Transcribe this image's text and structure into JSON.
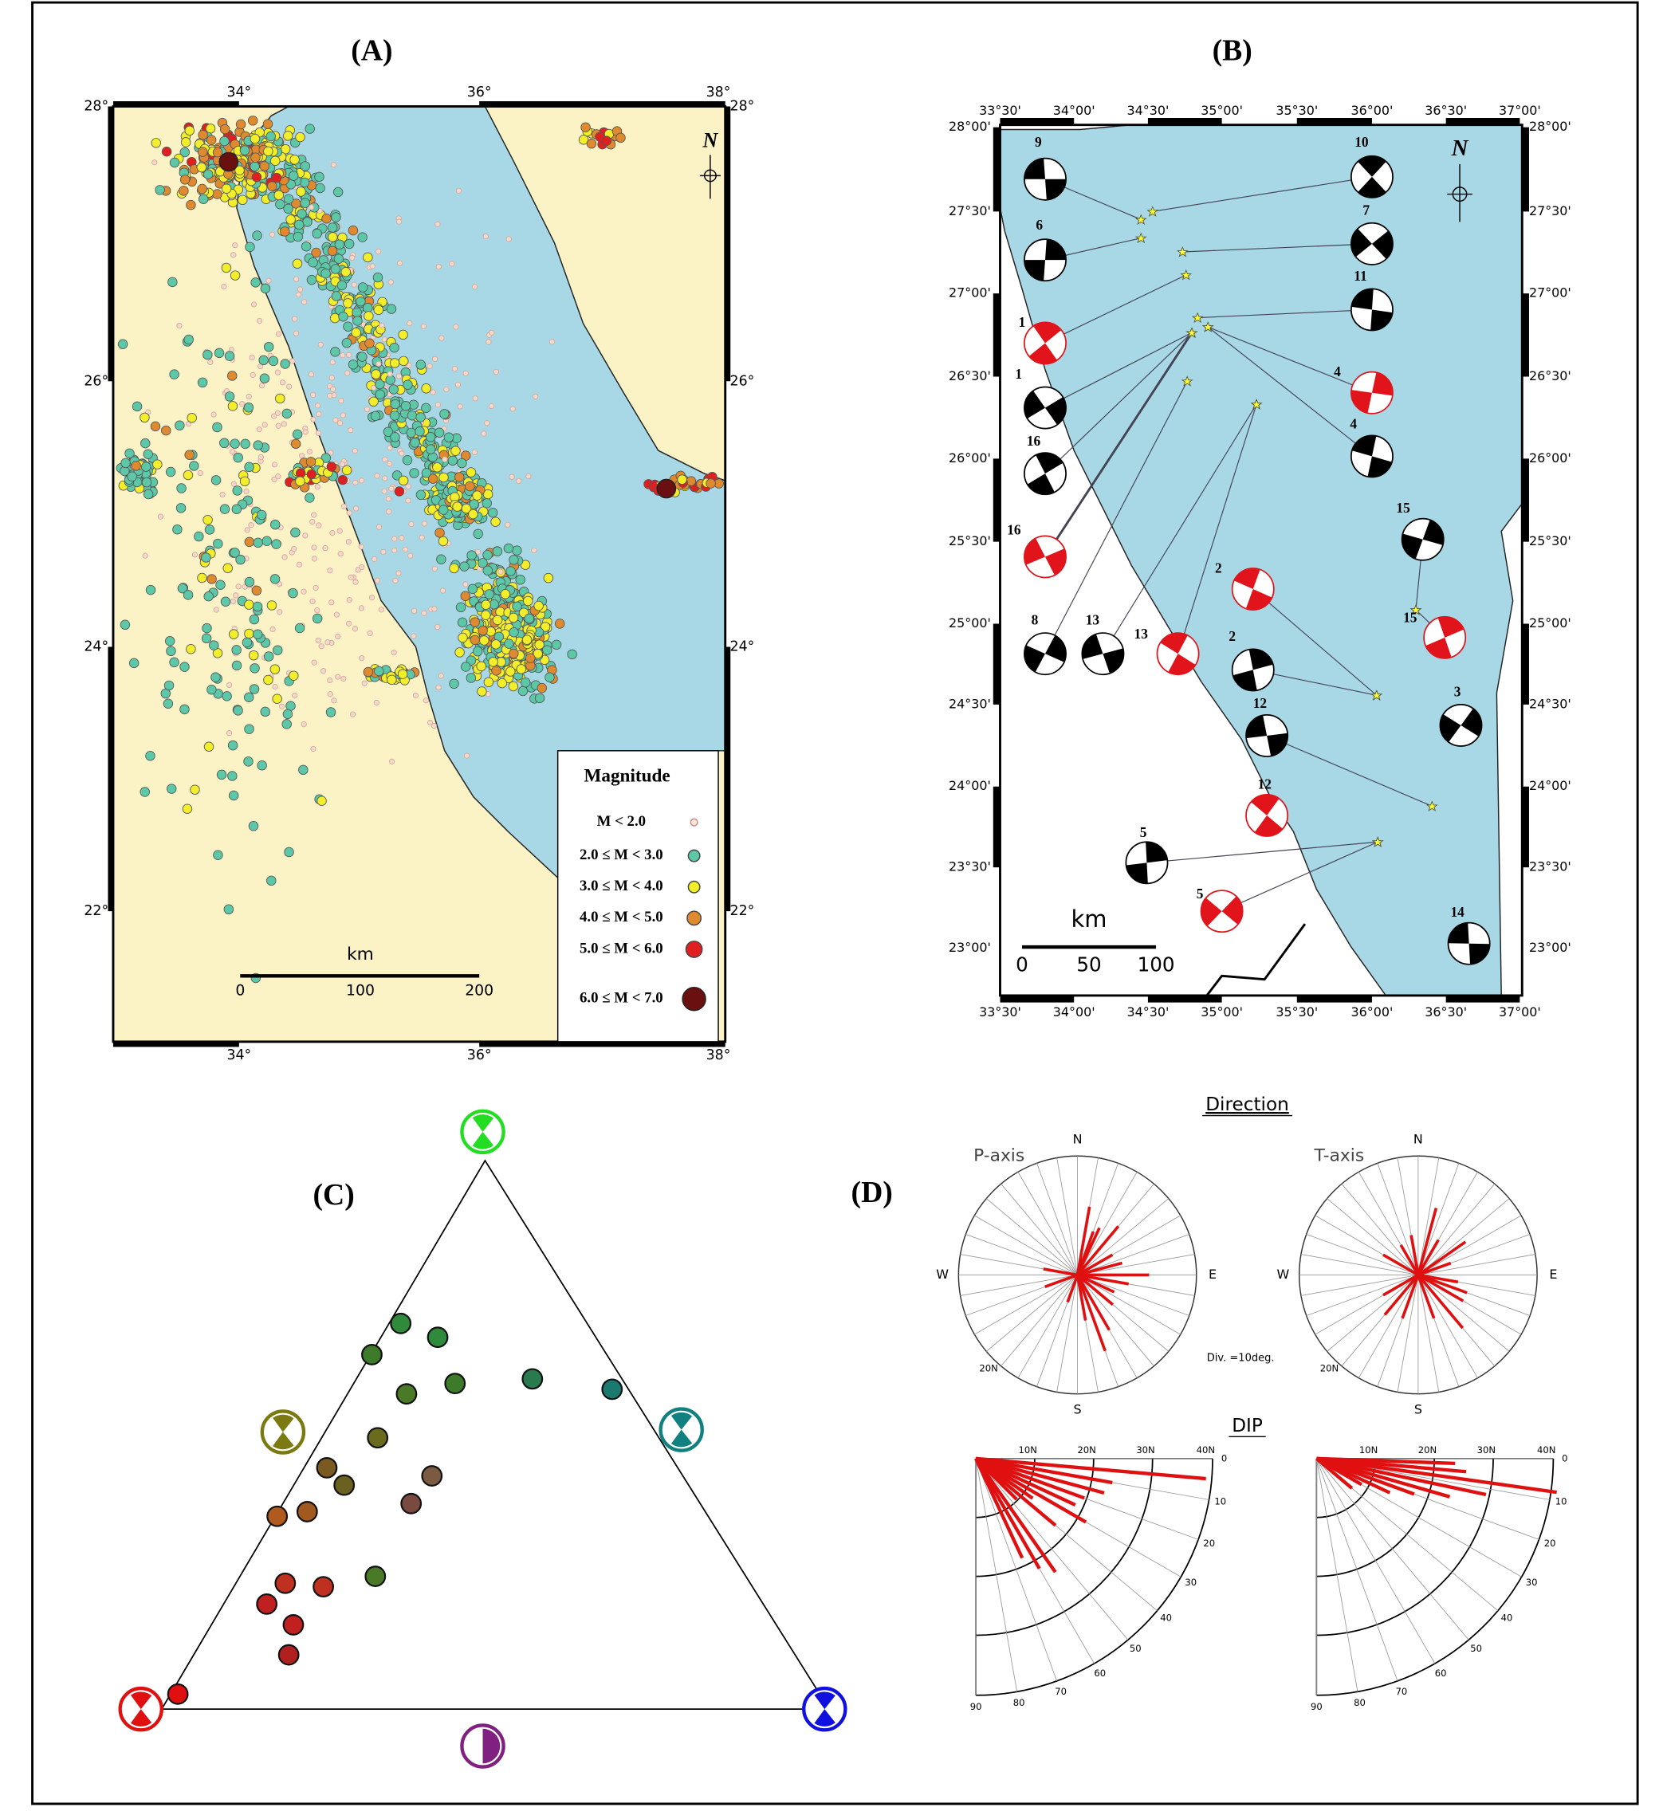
{
  "panels": {
    "a": {
      "label": "(A)",
      "lon_ticks": [
        "34°",
        "36°",
        "38°"
      ],
      "lat_ticks": [
        "28°",
        "26°",
        "24°",
        "22°"
      ],
      "north": "N",
      "legend": {
        "title": "Magnitude",
        "entries": [
          "M < 2.0",
          "2.0 ≤ M < 3.0",
          "3.0 ≤ M < 4.0",
          "4.0 ≤ M < 5.0",
          "5.0 ≤ M < 6.0",
          "6.0 ≤ M < 7.0"
        ]
      },
      "scale": {
        "unit": "km",
        "ticks": [
          "0",
          "100",
          "200"
        ]
      }
    },
    "b": {
      "label": "(B)",
      "lon_ticks": [
        "33°30'",
        "34°00'",
        "34°30'",
        "35°00'",
        "35°30'",
        "36°00'",
        "36°30'",
        "37°00'"
      ],
      "lat_ticks": [
        "28°00'",
        "27°30'",
        "27°00'",
        "26°30'",
        "26°00'",
        "25°30'",
        "25°00'",
        "24°30'",
        "24°00'",
        "23°30'",
        "23°00'"
      ],
      "north": "N",
      "scale": {
        "unit": "km",
        "ticks": [
          "0",
          "50",
          "100"
        ]
      },
      "mechanisms": [
        "9",
        "10",
        "6",
        "7",
        "11",
        "1",
        "4",
        "1",
        "4",
        "16",
        "15",
        "16",
        "2",
        "15",
        "8",
        "13",
        "13",
        "2",
        "3",
        "12",
        "12",
        "5",
        "5",
        "14"
      ]
    },
    "c": {
      "label": "(C)"
    },
    "d": {
      "label": "(D)",
      "direction_title": "Direction",
      "rose_titles": [
        "P-axis",
        "T-axis"
      ],
      "compass": [
        "N",
        "E",
        "S",
        "W"
      ],
      "division": "Div. =10deg.",
      "rose_tick": "20N",
      "dip_title": "DIP",
      "dip_rings": [
        "10N",
        "20N",
        "30N",
        "40N"
      ],
      "dip_arc": [
        "0",
        "10",
        "20",
        "30",
        "40",
        "50",
        "60",
        "70",
        "80",
        "90"
      ]
    }
  }
}
